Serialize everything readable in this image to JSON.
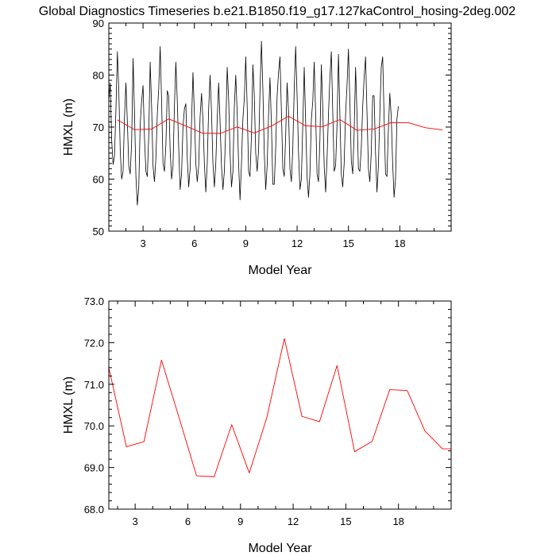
{
  "title": "Global Diagnostics Timeseries b.e21.B1850.f19_g17.127kaControl_hosing-2deg.002",
  "colors": {
    "monthly_series": "#000000",
    "annual_series": "#ff0000",
    "axes": "#000000",
    "background": "#ffffff"
  },
  "chart_data": [
    {
      "type": "line",
      "title": "",
      "xlabel": "Model Year",
      "ylabel": "HMXL (m)",
      "xlim": [
        1,
        21
      ],
      "ylim": [
        50,
        90
      ],
      "xticks": [
        3,
        6,
        9,
        12,
        15,
        18
      ],
      "xtick_labels": [
        "3",
        "6",
        "9",
        "12",
        "15",
        "18"
      ],
      "yticks": [
        50,
        60,
        70,
        80,
        90
      ],
      "ytick_labels": [
        "50",
        "60",
        "70",
        "80",
        "90"
      ],
      "grid": false,
      "legend": "none",
      "series": [
        {
          "style": "monthly",
          "color": "#000000",
          "x_start": 1.0,
          "x_step": 0.08333,
          "values": [
            75.0,
            78.5,
            67.5,
            62.8,
            64.5,
            73.5,
            84.5,
            77.0,
            65.5,
            60.0,
            61.5,
            72.0,
            78.5,
            71.0,
            62.5,
            61.0,
            67.0,
            83.2,
            73.0,
            60.5,
            55.0,
            58.5,
            70.5,
            75.0,
            78.0,
            68.0,
            61.5,
            60.5,
            68.5,
            82.5,
            74.0,
            62.5,
            59.5,
            64.0,
            72.5,
            77.5,
            85.5,
            75.0,
            63.0,
            61.5,
            66.5,
            77.0,
            76.0,
            65.5,
            60.0,
            62.5,
            74.0,
            82.5,
            75.0,
            66.0,
            58.0,
            61.0,
            70.0,
            73.5,
            74.5,
            64.0,
            58.5,
            62.0,
            71.0,
            80.5,
            72.5,
            63.0,
            59.5,
            62.5,
            72.0,
            76.5,
            71.5,
            63.0,
            57.5,
            63.0,
            73.5,
            80.0,
            73.0,
            63.0,
            58.5,
            63.0,
            71.5,
            78.5,
            71.0,
            62.5,
            58.0,
            61.5,
            70.0,
            81.5,
            75.5,
            65.0,
            58.5,
            61.5,
            74.0,
            80.0,
            72.5,
            63.0,
            56.0,
            63.0,
            71.5,
            75.5,
            83.5,
            74.0,
            61.5,
            60.5,
            68.5,
            82.0,
            76.0,
            65.0,
            61.5,
            65.5,
            77.0,
            86.5,
            77.5,
            65.0,
            58.0,
            62.5,
            72.5,
            79.5,
            70.5,
            59.0,
            59.0,
            66.0,
            76.0,
            80.5,
            83.5,
            73.0,
            62.0,
            60.5,
            68.5,
            78.5,
            73.0,
            62.0,
            59.5,
            66.0,
            77.5,
            85.5,
            76.0,
            65.0,
            58.0,
            60.0,
            70.5,
            81.5,
            71.0,
            60.5,
            56.5,
            61.0,
            71.5,
            75.0,
            82.5,
            72.5,
            61.0,
            59.5,
            67.5,
            82.0,
            73.5,
            62.5,
            57.5,
            64.0,
            72.5,
            79.5,
            84.5,
            73.0,
            61.5,
            62.5,
            70.5,
            84.0,
            72.5,
            61.0,
            58.5,
            63.0,
            72.5,
            78.0,
            85.0,
            75.0,
            63.5,
            61.0,
            69.0,
            81.5,
            72.5,
            62.0,
            61.5,
            66.0,
            74.0,
            79.5,
            83.5,
            73.0,
            62.0,
            59.5,
            65.0,
            76.0,
            76.0,
            65.0,
            57.5,
            62.5,
            72.5,
            81.5,
            83.5,
            72.0,
            61.0,
            60.5,
            69.5,
            76.5,
            72.0,
            63.0,
            56.5,
            60.0,
            71.5,
            74.0
          ]
        },
        {
          "style": "annual",
          "color": "#ff0000",
          "x": [
            1.5,
            2.5,
            3.5,
            4.5,
            5.5,
            6.5,
            7.5,
            8.5,
            9.5,
            10.5,
            11.5,
            12.5,
            13.5,
            14.5,
            15.5,
            16.5,
            17.5,
            18.5,
            19.5,
            20.5
          ],
          "values": [
            71.4,
            69.5,
            69.62,
            71.58,
            70.2,
            68.8,
            68.78,
            70.03,
            68.87,
            70.2,
            72.1,
            70.23,
            70.1,
            71.45,
            69.38,
            69.63,
            70.87,
            70.85,
            69.88,
            69.45
          ]
        }
      ]
    },
    {
      "type": "line",
      "title": "",
      "xlabel": "Model Year",
      "ylabel": "HMXL (m)",
      "xlim": [
        1.5,
        21
      ],
      "ylim": [
        68.0,
        73.0
      ],
      "xticks": [
        3,
        6,
        9,
        12,
        15,
        18
      ],
      "xtick_labels": [
        "3",
        "6",
        "9",
        "12",
        "15",
        "18"
      ],
      "yticks": [
        68.0,
        69.0,
        70.0,
        71.0,
        72.0,
        73.0
      ],
      "ytick_labels": [
        "68.0",
        "69.0",
        "70.0",
        "71.0",
        "72.0",
        "73.0"
      ],
      "grid": false,
      "legend": "none",
      "series": [
        {
          "style": "annual",
          "color": "#ff0000",
          "x": [
            1.5,
            2.5,
            3.5,
            4.5,
            5.5,
            6.5,
            7.5,
            8.5,
            9.5,
            10.5,
            11.5,
            12.5,
            13.5,
            14.5,
            15.5,
            16.5,
            17.5,
            18.5,
            19.5,
            20.5,
            21.0
          ],
          "values": [
            71.4,
            69.5,
            69.62,
            71.58,
            70.2,
            68.8,
            68.78,
            70.03,
            68.87,
            70.2,
            72.1,
            70.23,
            70.1,
            71.45,
            69.38,
            69.63,
            70.87,
            70.85,
            69.88,
            69.45,
            69.45
          ]
        }
      ]
    }
  ]
}
